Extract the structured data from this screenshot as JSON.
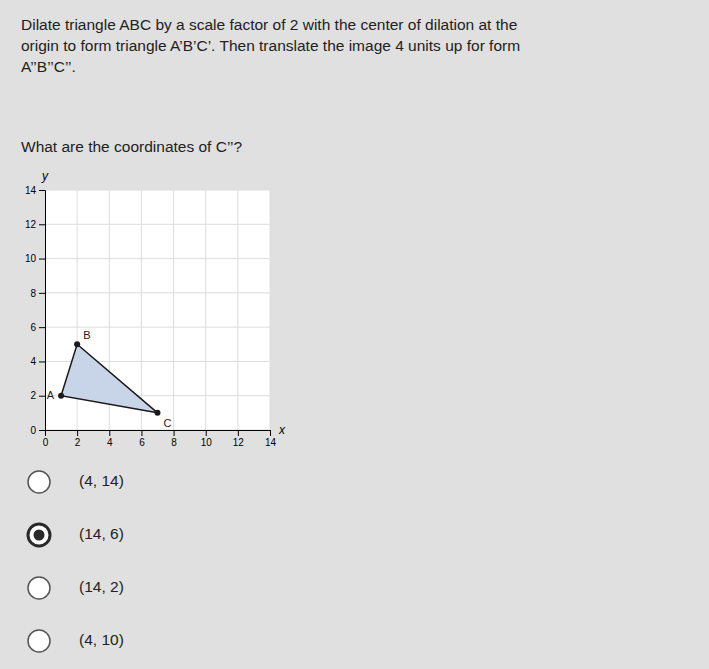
{
  "chart_data": {
    "type": "polygon",
    "title": "Dilate triangle ABC by a scale factor of 2 with the center of dilation at the\norigin to form triangle A’B’C’.  Then translate the image 4 units up for form\nA’’B’’C’’.",
    "x": [
      1,
      2,
      7
    ],
    "values": [
      2,
      5,
      1
    ],
    "labels": [
      "A",
      "B",
      "C"
    ],
    "color": "#c8d4e8",
    "marker": "circle",
    "xlim": [
      0,
      14
    ],
    "ylim": [
      0,
      14
    ],
    "xticks": [
      0,
      2,
      4,
      6,
      8,
      10,
      12,
      14
    ],
    "yticks": [
      0,
      2,
      4,
      6,
      8,
      10,
      12,
      14
    ],
    "x_label": "x",
    "y_label": "y",
    "grid": true
  },
  "question": "What are the coordinates of C’’?",
  "choices": [
    "(4, 14)",
    "(14, 6)",
    "(14, 2)",
    "(4, 10)"
  ],
  "selected_index": 1
}
